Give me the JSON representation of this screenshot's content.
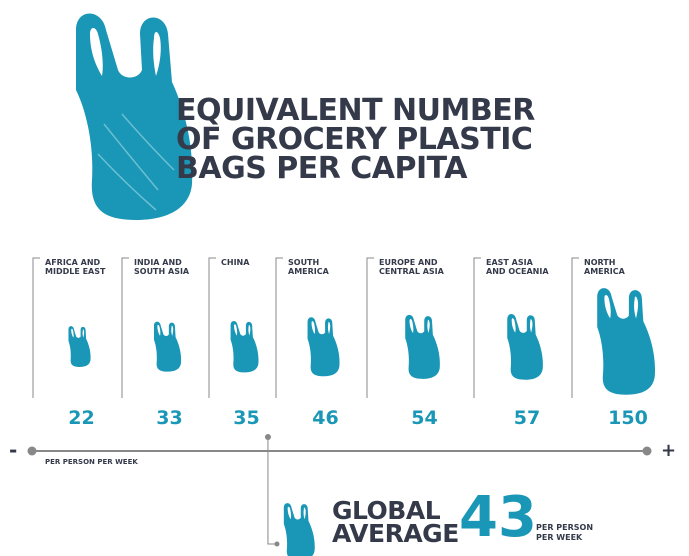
{
  "title": {
    "line1": "EQUIVALENT NUMBER",
    "line2": "OF GROCERY PLASTIC",
    "line3": "BAGS PER CAPITA"
  },
  "colors": {
    "accent": "#1a97b6",
    "text": "#343a4a",
    "axis": "#888888"
  },
  "icons": {
    "hero": "plastic-bag-icon",
    "region": "plastic-bag-icon"
  },
  "chart_data": {
    "type": "bar",
    "unit_note": "PER PERSON PER WEEK",
    "axis_min_label": "-",
    "axis_max_label": "+",
    "categories": [
      {
        "l1": "AFRICA AND",
        "l2": "MIDDLE EAST"
      },
      {
        "l1": "INDIA AND",
        "l2": "SOUTH ASIA"
      },
      {
        "l1": "CHINA",
        "l2": ""
      },
      {
        "l1": "SOUTH",
        "l2": "AMERICA"
      },
      {
        "l1": "EUROPE AND",
        "l2": "CENTRAL ASIA"
      },
      {
        "l1": "EAST ASIA",
        "l2": "AND OCEANIA"
      },
      {
        "l1": "NORTH",
        "l2": "AMERICA"
      }
    ],
    "values": [
      22,
      33,
      35,
      46,
      54,
      57,
      150
    ],
    "global": {
      "label_l1": "GLOBAL",
      "label_l2": "AVERAGE",
      "value": 43,
      "unit_l1": "PER PERSON",
      "unit_l2": "PER WEEK"
    }
  }
}
